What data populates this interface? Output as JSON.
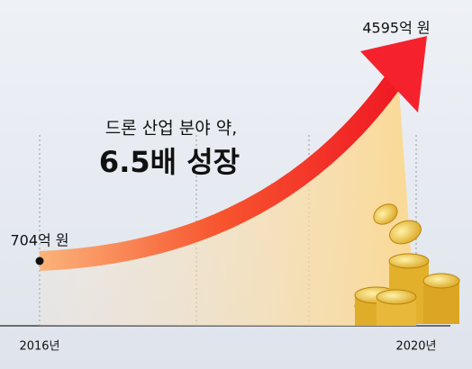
{
  "chart_data": {
    "type": "line",
    "title": "드론 산업 분야 약,",
    "subtitle": "6.5배 성장",
    "categories": [
      "2016년",
      "2020년"
    ],
    "values": [
      704,
      4595
    ],
    "value_labels": [
      "704억 원",
      "4595억 원"
    ],
    "color": "#f5222d"
  }
}
